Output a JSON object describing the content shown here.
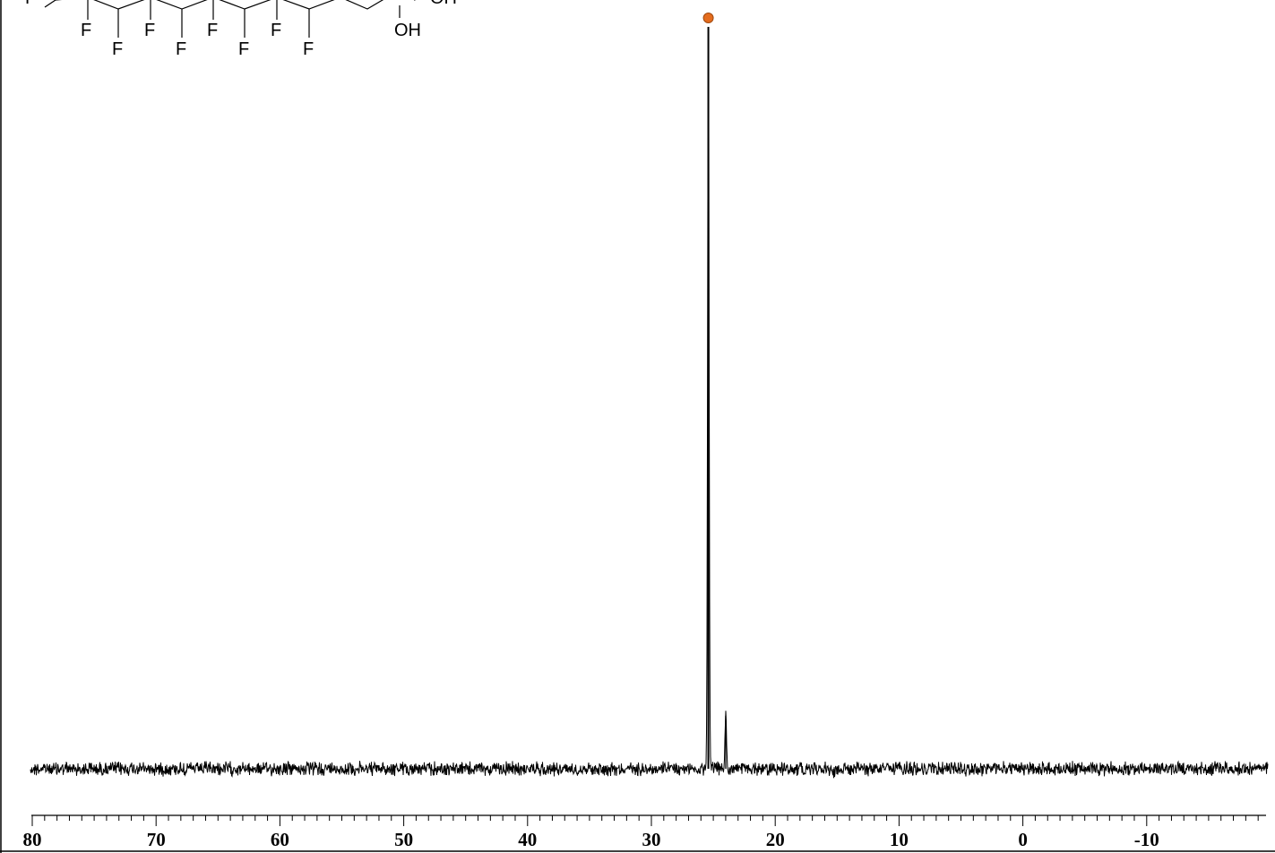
{
  "structure": {
    "atom_labels": [
      "F",
      "F",
      "F",
      "F",
      "F",
      "F",
      "F",
      "F",
      "F",
      "OH",
      "OH"
    ]
  },
  "chart_data": {
    "type": "line",
    "title": "",
    "xlabel": "",
    "ylabel": "",
    "x_reversed": true,
    "xlim": [
      80,
      -20
    ],
    "ylim": [
      0,
      100
    ],
    "x_ticks": [
      80,
      70,
      60,
      50,
      40,
      30,
      20,
      10,
      0,
      -10
    ],
    "x_tick_labels": [
      "80",
      "70",
      "60",
      "50",
      "40",
      "30",
      "20",
      "10",
      "0",
      "-10"
    ],
    "grid": false,
    "baseline_level": 2,
    "peaks": [
      {
        "x": 25.4,
        "y": 100,
        "marked": true
      },
      {
        "x": 24.0,
        "y": 9
      },
      {
        "x": 27.3,
        "y": 1.8
      },
      {
        "x": 3.6,
        "y": 1.6
      },
      {
        "x": 15.3,
        "y": 1.1
      }
    ],
    "peak_marker_color": "#e46c1e",
    "line_color": "#000000"
  }
}
